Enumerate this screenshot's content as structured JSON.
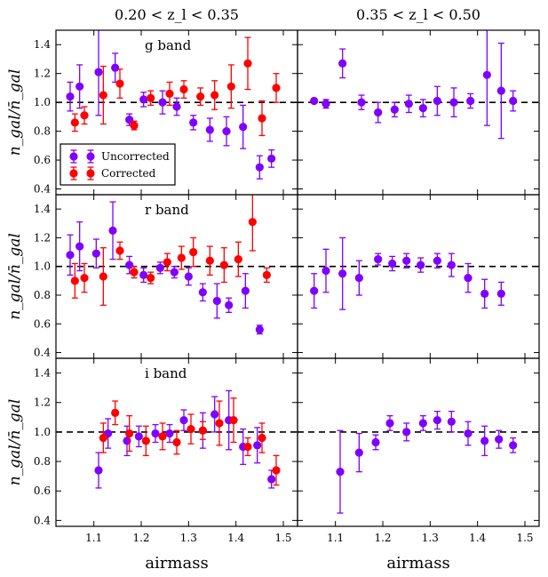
{
  "column_titles": [
    "0.20 < z_l < 0.35",
    "0.35 < z_l < 0.50"
  ],
  "xlabel": "airmass",
  "ylabel": "n_gal/n̄_gal",
  "x_ticks": [
    "1.1",
    "1.2",
    "1.3",
    "1.4",
    "1.5"
  ],
  "y_ticks": [
    "0.4",
    "0.6",
    "0.8",
    "1.0",
    "1.2",
    "1.4"
  ],
  "legend": {
    "uncorrected": "Uncorrected",
    "corrected": "Corrected"
  },
  "colors": {
    "uncorrected": "#7f00ff",
    "corrected": "#ff0000",
    "reference": "#000000"
  },
  "chart_data": {
    "type": "scatter",
    "xlim": [
      1.02,
      1.53
    ],
    "ylim": [
      0.36,
      1.5
    ],
    "reference_line": 1.0,
    "panels": [
      {
        "row": 0,
        "col": 0,
        "label": "g band",
        "band": "g",
        "series": [
          {
            "name": "Uncorrected",
            "points": [
              [
                1.05,
                1.04,
                0.1
              ],
              [
                1.07,
                1.11,
                0.15
              ],
              [
                1.11,
                1.21,
                0.3
              ],
              [
                1.145,
                1.24,
                0.1
              ],
              [
                1.175,
                0.88,
                0.04
              ],
              [
                1.205,
                1.02,
                0.05
              ],
              [
                1.245,
                1.0,
                0.08
              ],
              [
                1.275,
                0.97,
                0.06
              ],
              [
                1.31,
                0.86,
                0.05
              ],
              [
                1.345,
                0.81,
                0.08
              ],
              [
                1.38,
                0.8,
                0.1
              ],
              [
                1.415,
                0.83,
                0.15
              ],
              [
                1.45,
                0.55,
                0.08
              ],
              [
                1.475,
                0.61,
                0.06
              ]
            ]
          },
          {
            "name": "Corrected",
            "points": [
              [
                1.06,
                0.86,
                0.06
              ],
              [
                1.08,
                0.91,
                0.06
              ],
              [
                1.12,
                1.05,
                0.2
              ],
              [
                1.155,
                1.13,
                0.1
              ],
              [
                1.185,
                0.84,
                0.03
              ],
              [
                1.22,
                1.03,
                0.05
              ],
              [
                1.26,
                1.06,
                0.08
              ],
              [
                1.29,
                1.09,
                0.06
              ],
              [
                1.325,
                1.04,
                0.06
              ],
              [
                1.355,
                1.05,
                0.1
              ],
              [
                1.39,
                1.11,
                0.15
              ],
              [
                1.425,
                1.27,
                0.18
              ],
              [
                1.455,
                0.89,
                0.12
              ],
              [
                1.485,
                1.1,
                0.1
              ]
            ]
          }
        ]
      },
      {
        "row": 0,
        "col": 1,
        "label": "",
        "series": [
          {
            "name": "Uncorrected",
            "points": [
              [
                1.055,
                1.01,
                0.01
              ],
              [
                1.08,
                0.99,
                0.03
              ],
              [
                1.115,
                1.27,
                0.1
              ],
              [
                1.155,
                1.0,
                0.05
              ],
              [
                1.19,
                0.93,
                0.07
              ],
              [
                1.225,
                0.95,
                0.05
              ],
              [
                1.255,
                0.99,
                0.06
              ],
              [
                1.285,
                0.96,
                0.06
              ],
              [
                1.315,
                1.01,
                0.1
              ],
              [
                1.35,
                1.0,
                0.1
              ],
              [
                1.385,
                1.01,
                0.05
              ],
              [
                1.42,
                1.19,
                0.35
              ],
              [
                1.45,
                1.08,
                0.33
              ],
              [
                1.475,
                1.01,
                0.07
              ]
            ]
          }
        ]
      },
      {
        "row": 1,
        "col": 0,
        "label": "r band",
        "band": "r",
        "series": [
          {
            "name": "Uncorrected",
            "points": [
              [
                1.05,
                1.08,
                0.14
              ],
              [
                1.07,
                1.14,
                0.17
              ],
              [
                1.105,
                1.09,
                0.1
              ],
              [
                1.14,
                1.25,
                0.2
              ],
              [
                1.175,
                1.01,
                0.06
              ],
              [
                1.205,
                0.94,
                0.05
              ],
              [
                1.24,
                0.99,
                0.04
              ],
              [
                1.27,
                0.96,
                0.04
              ],
              [
                1.3,
                0.93,
                0.06
              ],
              [
                1.33,
                0.82,
                0.06
              ],
              [
                1.36,
                0.76,
                0.12
              ],
              [
                1.385,
                0.73,
                0.05
              ],
              [
                1.42,
                0.83,
                0.12
              ],
              [
                1.45,
                0.56,
                0.03
              ]
            ]
          },
          {
            "name": "Corrected",
            "points": [
              [
                1.06,
                0.9,
                0.12
              ],
              [
                1.08,
                0.92,
                0.1
              ],
              [
                1.12,
                0.93,
                0.2
              ],
              [
                1.155,
                1.11,
                0.06
              ],
              [
                1.185,
                0.96,
                0.04
              ],
              [
                1.22,
                0.92,
                0.04
              ],
              [
                1.255,
                1.03,
                0.06
              ],
              [
                1.285,
                1.06,
                0.08
              ],
              [
                1.31,
                1.1,
                0.1
              ],
              [
                1.345,
                1.04,
                0.1
              ],
              [
                1.375,
                1.01,
                0.12
              ],
              [
                1.405,
                1.05,
                0.12
              ],
              [
                1.435,
                1.31,
                0.2
              ],
              [
                1.465,
                0.94,
                0.05
              ]
            ]
          }
        ]
      },
      {
        "row": 1,
        "col": 1,
        "label": "",
        "series": [
          {
            "name": "Uncorrected",
            "points": [
              [
                1.055,
                0.83,
                0.12
              ],
              [
                1.08,
                0.97,
                0.15
              ],
              [
                1.115,
                0.95,
                0.25
              ],
              [
                1.15,
                0.92,
                0.12
              ],
              [
                1.19,
                1.05,
                0.04
              ],
              [
                1.22,
                1.02,
                0.05
              ],
              [
                1.25,
                1.04,
                0.05
              ],
              [
                1.28,
                1.01,
                0.05
              ],
              [
                1.315,
                1.04,
                0.05
              ],
              [
                1.345,
                1.01,
                0.08
              ],
              [
                1.38,
                0.92,
                0.1
              ],
              [
                1.415,
                0.81,
                0.1
              ],
              [
                1.45,
                0.81,
                0.08
              ]
            ]
          }
        ]
      },
      {
        "row": 2,
        "col": 0,
        "label": "i band",
        "band": "i",
        "series": [
          {
            "name": "Uncorrected",
            "points": [
              [
                1.11,
                0.74,
                0.12
              ],
              [
                1.13,
                0.99,
                0.1
              ],
              [
                1.17,
                0.94,
                0.1
              ],
              [
                1.195,
                0.97,
                0.07
              ],
              [
                1.23,
                0.99,
                0.06
              ],
              [
                1.26,
                0.99,
                0.06
              ],
              [
                1.29,
                1.08,
                0.07
              ],
              [
                1.33,
                1.01,
                0.12
              ],
              [
                1.355,
                1.12,
                0.12
              ],
              [
                1.385,
                1.08,
                0.2
              ],
              [
                1.415,
                0.9,
                0.12
              ],
              [
                1.445,
                0.91,
                0.12
              ],
              [
                1.475,
                0.68,
                0.06
              ]
            ]
          },
          {
            "name": "Corrected",
            "points": [
              [
                1.12,
                0.96,
                0.1
              ],
              [
                1.145,
                1.13,
                0.08
              ],
              [
                1.175,
                0.99,
                0.12
              ],
              [
                1.21,
                0.94,
                0.1
              ],
              [
                1.245,
                0.97,
                0.09
              ],
              [
                1.275,
                0.93,
                0.08
              ],
              [
                1.305,
                1.02,
                0.1
              ],
              [
                1.33,
                1.01,
                0.06
              ],
              [
                1.365,
                1.06,
                0.15
              ],
              [
                1.395,
                1.08,
                0.15
              ],
              [
                1.425,
                0.9,
                0.06
              ],
              [
                1.455,
                0.96,
                0.1
              ],
              [
                1.485,
                0.74,
                0.1
              ]
            ]
          }
        ]
      },
      {
        "row": 2,
        "col": 1,
        "label": "",
        "series": [
          {
            "name": "Uncorrected",
            "points": [
              [
                1.11,
                0.73,
                0.28
              ],
              [
                1.15,
                0.86,
                0.13
              ],
              [
                1.185,
                0.93,
                0.05
              ],
              [
                1.215,
                1.06,
                0.05
              ],
              [
                1.25,
                1.0,
                0.06
              ],
              [
                1.285,
                1.06,
                0.05
              ],
              [
                1.315,
                1.08,
                0.06
              ],
              [
                1.345,
                1.07,
                0.07
              ],
              [
                1.38,
                0.99,
                0.08
              ],
              [
                1.415,
                0.94,
                0.1
              ],
              [
                1.445,
                0.95,
                0.06
              ],
              [
                1.475,
                0.91,
                0.05
              ]
            ]
          }
        ]
      }
    ]
  }
}
